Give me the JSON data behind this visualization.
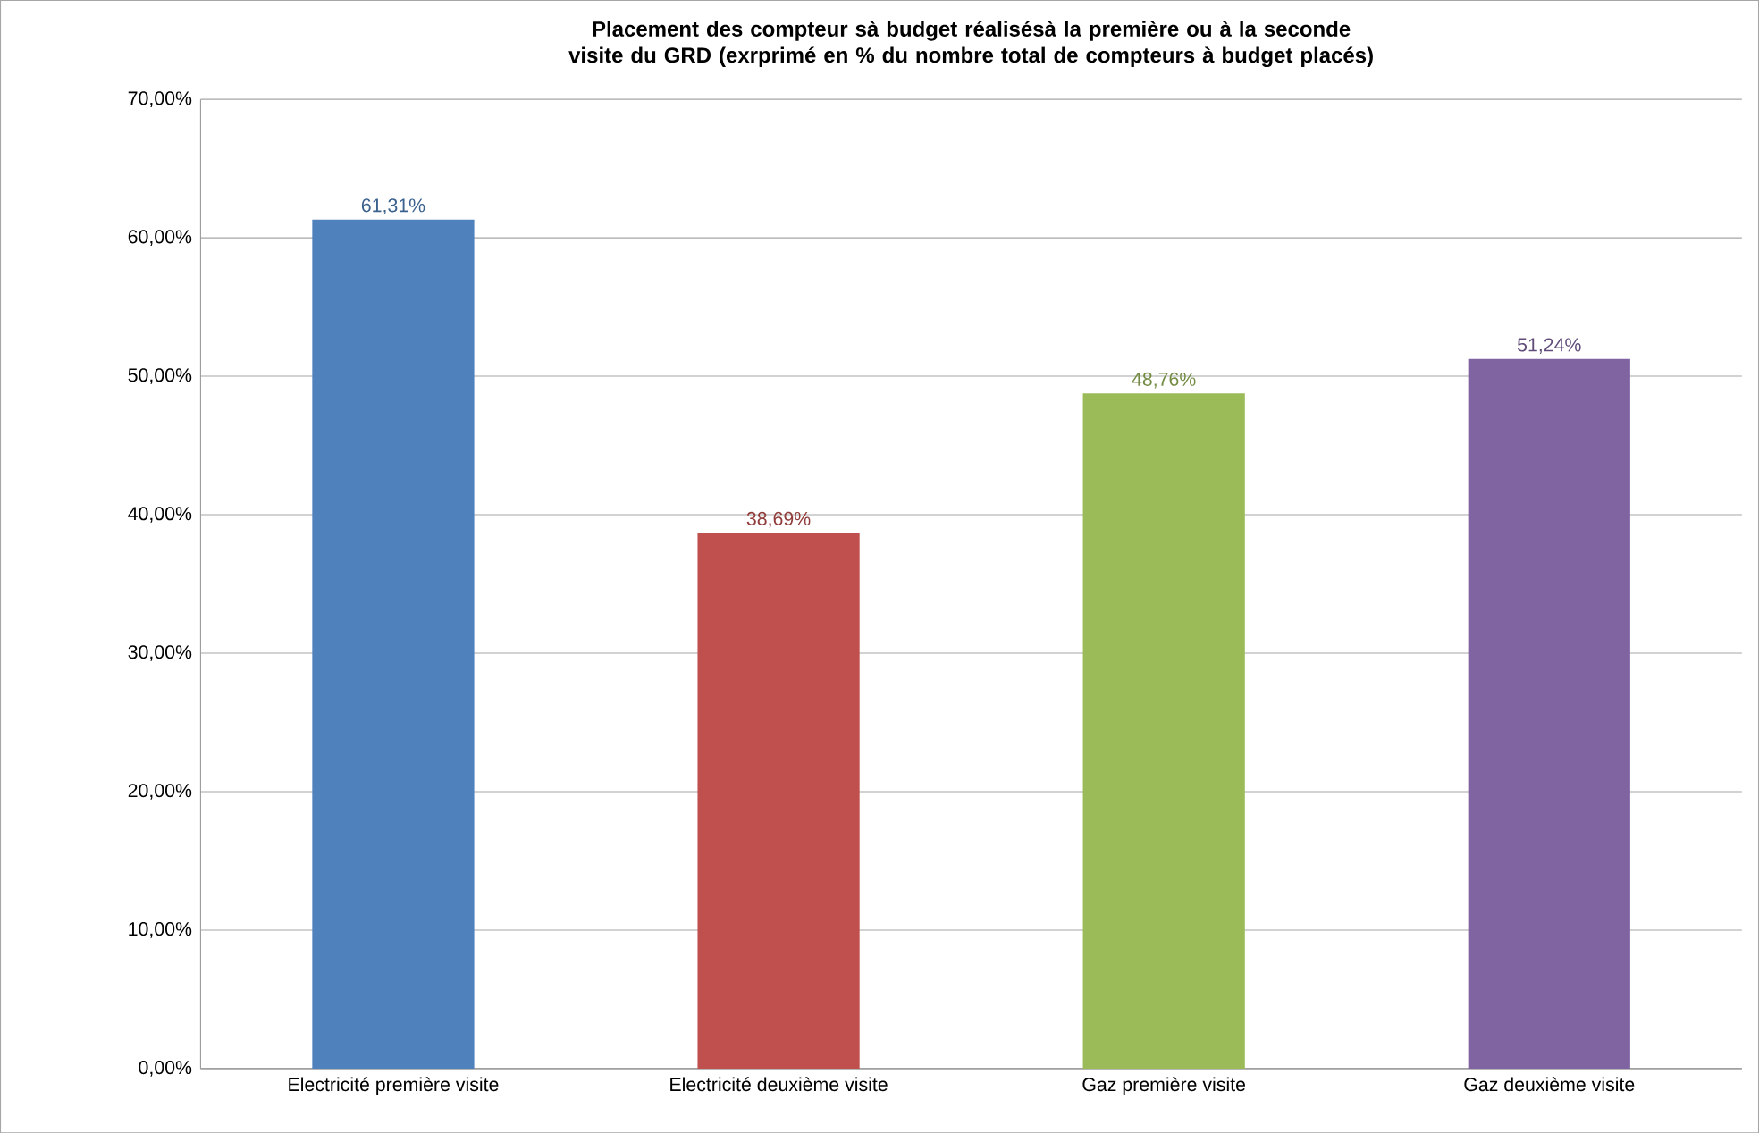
{
  "chart_data": {
    "type": "bar",
    "title": "Placement des compteur sà budget réalisésà la première ou à la seconde visite du GRD (exrprimé en % du nombre total de compteurs à budget placés)",
    "categories": [
      "Electricité première visite",
      "Electricité deuxième visite",
      "Gaz première visite",
      "Gaz deuxième visite"
    ],
    "values": [
      61.31,
      38.69,
      48.76,
      51.24
    ],
    "colors": [
      "#4f81bd",
      "#c0504d",
      "#9bbb59",
      "#8064a2"
    ],
    "value_labels": [
      "61,31%",
      "38,69%",
      "48,76%",
      "51,24%"
    ],
    "ylim": [
      0,
      70
    ],
    "yticks": [
      {
        "value": 0,
        "label": "0,00%"
      },
      {
        "value": 10,
        "label": "10,00%"
      },
      {
        "value": 20,
        "label": "20,00%"
      },
      {
        "value": 30,
        "label": "30,00%"
      },
      {
        "value": 40,
        "label": "40,00%"
      },
      {
        "value": 50,
        "label": "50,00%"
      },
      {
        "value": 60,
        "label": "60,00%"
      },
      {
        "value": 70,
        "label": "70,00%"
      }
    ],
    "grid": "y"
  }
}
